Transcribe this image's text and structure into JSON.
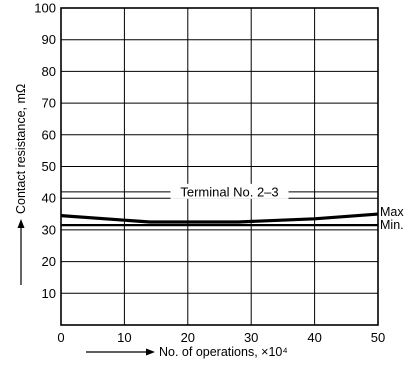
{
  "chart_data": {
    "type": "line",
    "xlabel": "No. of operations, ×10⁴",
    "ylabel": "Contact resistance, mΩ",
    "xlim": [
      0,
      50
    ],
    "ylim": [
      0,
      100
    ],
    "x_ticks": [
      0,
      10,
      20,
      30,
      40,
      50
    ],
    "y_ticks": [
      10,
      20,
      30,
      40,
      50,
      60,
      70,
      80,
      90,
      100
    ],
    "grid": true,
    "annotation": {
      "text": "Terminal No. 2–3",
      "y": 42
    },
    "series": [
      {
        "name": "Max",
        "x": [
          0,
          14,
          28,
          40,
          50
        ],
        "values": [
          34.5,
          32.5,
          32.5,
          33.5,
          35
        ],
        "color": "#000000",
        "weight": "bold"
      },
      {
        "name": "Min.",
        "x": [
          0,
          50
        ],
        "values": [
          31.5,
          31.5
        ],
        "color": "#000000",
        "weight": "normal"
      }
    ]
  }
}
